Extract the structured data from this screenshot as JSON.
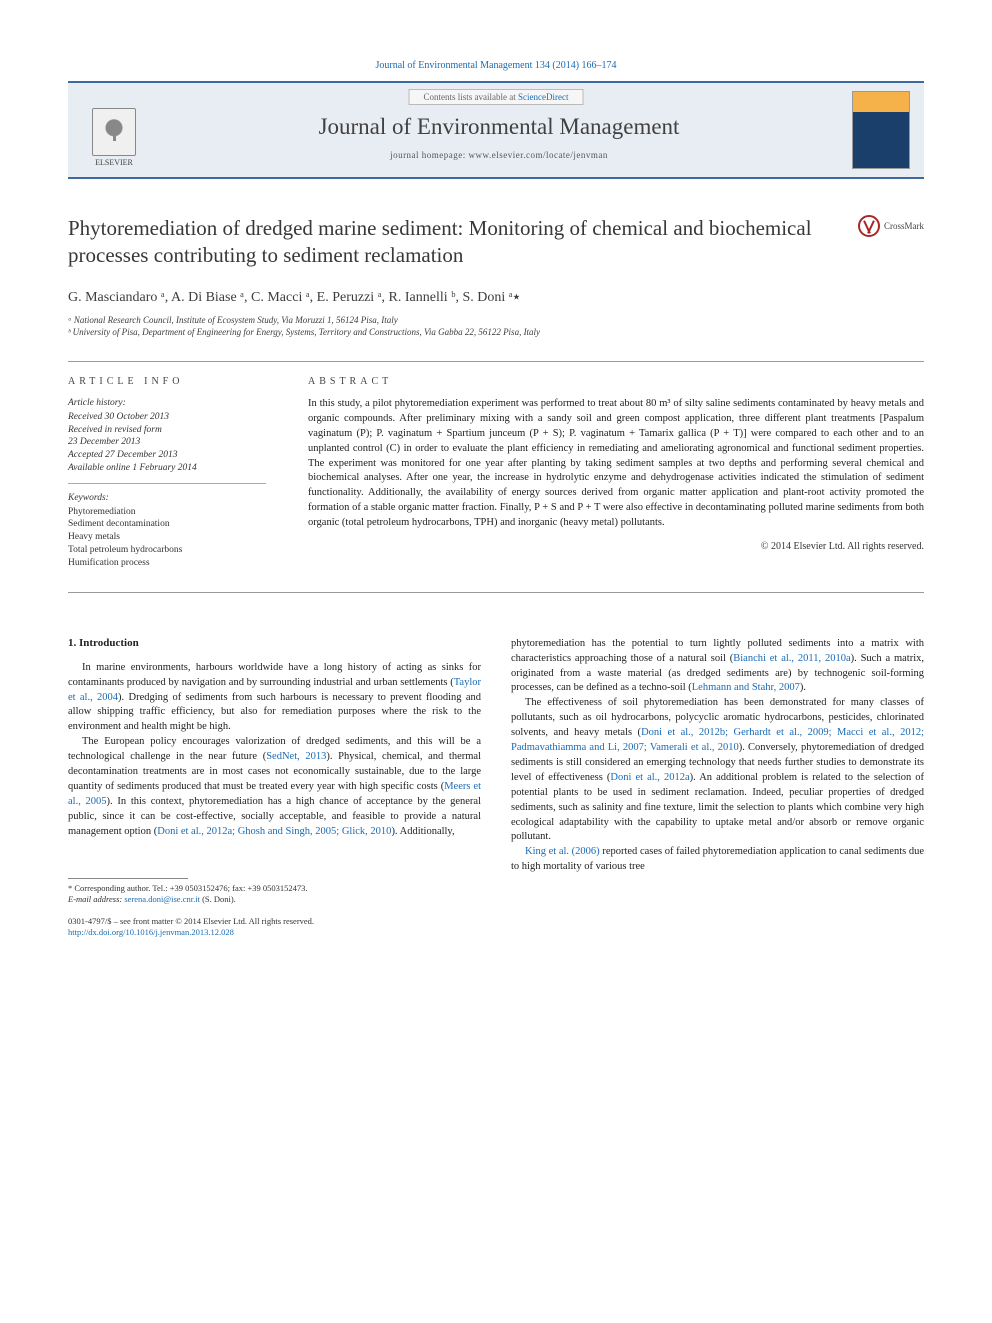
{
  "header": {
    "citation": "Journal of Environmental Management 134 (2014) 166–174",
    "contents_prefix": "Contents lists available at ",
    "contents_link": "ScienceDirect",
    "journal_title": "Journal of Environmental Management",
    "homepage_label": "journal homepage: ",
    "homepage_url": "www.elsevier.com/locate/jenvman",
    "publisher_logo_label": "ELSEVIER"
  },
  "crossmark_label": "CrossMark",
  "title": "Phytoremediation of dredged marine sediment: Monitoring of chemical and biochemical processes contributing to sediment reclamation",
  "authors_html": "G. Masciandaro ᵃ, A. Di Biase ᵃ, C. Macci ᵃ, E. Peruzzi ᵃ, R. Iannelli ᵇ, S. Doni ᵃ٭",
  "affiliations": [
    "ᵃ National Research Council, Institute of Ecosystem Study, Via Moruzzi 1, 56124 Pisa, Italy",
    "ᵇ University of Pisa, Department of Engineering for Energy, Systems, Territory and Constructions, Via Gabba 22, 56122 Pisa, Italy"
  ],
  "article_info_heading": "ARTICLE INFO",
  "abstract_heading": "ABSTRACT",
  "history": {
    "label": "Article history:",
    "lines": [
      "Received 30 October 2013",
      "Received in revised form",
      "23 December 2013",
      "Accepted 27 December 2013",
      "Available online 1 February 2014"
    ]
  },
  "keywords": {
    "label": "Keywords:",
    "items": [
      "Phytoremediation",
      "Sediment decontamination",
      "Heavy metals",
      "Total petroleum hydrocarbons",
      "Humification process"
    ]
  },
  "abstract": "In this study, a pilot phytoremediation experiment was performed to treat about 80 m³ of silty saline sediments contaminated by heavy metals and organic compounds. After preliminary mixing with a sandy soil and green compost application, three different plant treatments [Paspalum vaginatum (P); P. vaginatum + Spartium junceum (P + S); P. vaginatum + Tamarix gallica (P + T)] were compared to each other and to an unplanted control (C) in order to evaluate the plant efficiency in remediating and ameliorating agronomical and functional sediment properties. The experiment was monitored for one year after planting by taking sediment samples at two depths and performing several chemical and biochemical analyses. After one year, the increase in hydrolytic enzyme and dehydrogenase activities indicated the stimulation of sediment functionality. Additionally, the availability of energy sources derived from organic matter application and plant-root activity promoted the formation of a stable organic matter fraction. Finally, P + S and P + T were also effective in decontaminating polluted marine sediments from both organic (total petroleum hydrocarbons, TPH) and inorganic (heavy metal) pollutants.",
  "copyright": "© 2014 Elsevier Ltd. All rights reserved.",
  "intro_heading": "1. Introduction",
  "body": {
    "left": [
      "In marine environments, harbours worldwide have a long history of acting as sinks for contaminants produced by navigation and by surrounding industrial and urban settlements (<span class=\"cite\">Taylor et al., 2004</span>). Dredging of sediments from such harbours is necessary to prevent flooding and allow shipping traffic efficiency, but also for remediation purposes where the risk to the environment and health might be high.",
      "The European policy encourages valorization of dredged sediments, and this will be a technological challenge in the near future (<span class=\"cite\">SedNet, 2013</span>). Physical, chemical, and thermal decontamination treatments are in most cases not economically sustainable, due to the large quantity of sediments produced that must be treated every year with high specific costs (<span class=\"cite\">Meers et al., 2005</span>). In this context, phytoremediation has a high chance of acceptance by the general public, since it can be cost-effective, socially acceptable, and feasible to provide a natural management option (<span class=\"cite\">Doni et al., 2012a; Ghosh and Singh, 2005; Glick, 2010</span>). Additionally,"
    ],
    "right": [
      "phytoremediation has the potential to turn lightly polluted sediments into a matrix with characteristics approaching those of a natural soil (<span class=\"cite\">Bianchi et al., 2011, 2010a</span>). Such a matrix, originated from a waste material (as dredged sediments are) by technogenic soil-forming processes, can be defined as a techno-soil (<span class=\"cite\">Lehmann and Stahr, 2007</span>).",
      "The effectiveness of soil phytoremediation has been demonstrated for many classes of pollutants, such as oil hydrocarbons, polycyclic aromatic hydrocarbons, pesticides, chlorinated solvents, and heavy metals (<span class=\"cite\">Doni et al., 2012b; Gerhardt et al., 2009; Macci et al., 2012; Padmavathiamma and Li, 2007; Vamerali et al., 2010</span>). Conversely, phytoremediation of dredged sediments is still considered an emerging technology that needs further studies to demonstrate its level of effectiveness (<span class=\"cite\">Doni et al., 2012a</span>). An additional problem is related to the selection of potential plants to be used in sediment reclamation. Indeed, peculiar properties of dredged sediments, such as salinity and fine texture, limit the selection to plants which combine very high ecological adaptability with the capability to uptake metal and/or absorb or remove organic pollutant.",
      "<span class=\"cite\">King et al. (2006)</span> reported cases of failed phytoremediation application to canal sediments due to high mortality of various tree"
    ]
  },
  "footnote": {
    "corr_label": "* Corresponding author. Tel.: +39 0503152476; fax: +39 0503152473.",
    "email_label": "E-mail address:",
    "email": "serena.doni@ise.cnr.it",
    "email_who": "(S. Doni)."
  },
  "bottom": {
    "line1": "0301-4797/$ – see front matter © 2014 Elsevier Ltd. All rights reserved.",
    "doi": "http://dx.doi.org/10.1016/j.jenvman.2013.12.028"
  },
  "colors": {
    "link": "#1a6bb5",
    "rule": "#3c6a9e"
  }
}
